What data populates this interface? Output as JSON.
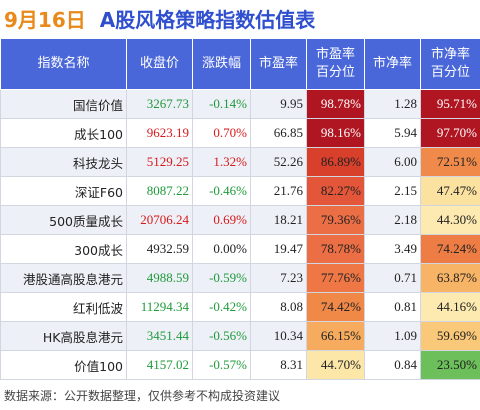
{
  "header": {
    "date": "9月16日",
    "title": "A股风格策略指数估值表"
  },
  "columns": [
    "指数名称",
    "收盘价",
    "涨跌幅",
    "市盈率",
    "市盈率\n百分位",
    "市净率",
    "市净率\n百分位"
  ],
  "rows": [
    {
      "name": "国信价值",
      "close": "3267.73",
      "chg": "-0.14%",
      "dir": "down",
      "pe": "9.95",
      "pe_pct": "98.78%",
      "pe_color": "#b01622",
      "pe_text": "#ffffff",
      "pb": "1.28",
      "pb_pct": "95.71%",
      "pb_color": "#b01622",
      "pb_text": "#ffffff"
    },
    {
      "name": "成长100",
      "close": "9623.19",
      "chg": "0.70%",
      "dir": "up",
      "pe": "66.85",
      "pe_pct": "98.16%",
      "pe_color": "#b01622",
      "pe_text": "#ffffff",
      "pb": "5.94",
      "pb_pct": "97.70%",
      "pb_color": "#b01622",
      "pb_text": "#ffffff"
    },
    {
      "name": "科技龙头",
      "close": "5129.25",
      "chg": "1.32%",
      "dir": "up",
      "pe": "52.26",
      "pe_pct": "86.89%",
      "pe_color": "#d8402b",
      "pe_text": "#222222",
      "pb": "6.00",
      "pb_pct": "72.51%",
      "pb_color": "#f08a4a",
      "pb_text": "#222222"
    },
    {
      "name": "深证F60",
      "close": "8087.22",
      "chg": "-0.46%",
      "dir": "down",
      "pe": "21.76",
      "pe_pct": "82.27%",
      "pe_color": "#e4563a",
      "pe_text": "#222222",
      "pb": "2.15",
      "pb_pct": "47.47%",
      "pb_color": "#fbe2a0",
      "pb_text": "#222222"
    },
    {
      "name": "500质量成长",
      "close": "20706.24",
      "chg": "0.69%",
      "dir": "up",
      "pe": "18.21",
      "pe_pct": "79.36%",
      "pe_color": "#ec6e45",
      "pe_text": "#222222",
      "pb": "2.18",
      "pb_pct": "44.30%",
      "pb_color": "#fdeab0",
      "pb_text": "#222222"
    },
    {
      "name": "300成长",
      "close": "4932.59",
      "chg": "0.00%",
      "dir": "flat",
      "pe": "19.47",
      "pe_pct": "78.78%",
      "pe_color": "#ec6e45",
      "pe_text": "#222222",
      "pb": "3.49",
      "pb_pct": "74.24%",
      "pb_color": "#ee7d45",
      "pb_text": "#222222"
    },
    {
      "name": "港股通高股息港元",
      "close": "4988.59",
      "chg": "-0.59%",
      "dir": "down",
      "pe": "7.23",
      "pe_pct": "77.76%",
      "pe_color": "#ef7746",
      "pe_text": "#222222",
      "pb": "0.71",
      "pb_pct": "63.87%",
      "pb_color": "#f7b466",
      "pb_text": "#222222"
    },
    {
      "name": "红利低波",
      "close": "11294.34",
      "chg": "-0.42%",
      "dir": "down",
      "pe": "8.08",
      "pe_pct": "74.42%",
      "pe_color": "#f08848",
      "pe_text": "#222222",
      "pb": "0.81",
      "pb_pct": "44.16%",
      "pb_color": "#fdeab0",
      "pb_text": "#222222"
    },
    {
      "name": "HK高股息港元",
      "close": "3451.44",
      "chg": "-0.56%",
      "dir": "down",
      "pe": "10.34",
      "pe_pct": "66.15%",
      "pe_color": "#f6ab5e",
      "pe_text": "#222222",
      "pb": "1.09",
      "pb_pct": "59.69%",
      "pb_color": "#f9c878",
      "pb_text": "#222222"
    },
    {
      "name": "价值100",
      "close": "4157.02",
      "chg": "-0.57%",
      "dir": "down",
      "pe": "8.31",
      "pe_pct": "44.70%",
      "pe_color": "#fde7a8",
      "pe_text": "#222222",
      "pb": "0.84",
      "pb_pct": "23.50%",
      "pb_color": "#6cbf5a",
      "pb_text": "#222222"
    }
  ],
  "footer": "数据来源：公开数据整理，仅供参考不构成投资建议",
  "colors": {
    "header_bg": "#4a67da",
    "up": "#d71a1a",
    "down": "#1f9a3a",
    "title": "#2f4fcf",
    "date": "#e8891a"
  }
}
